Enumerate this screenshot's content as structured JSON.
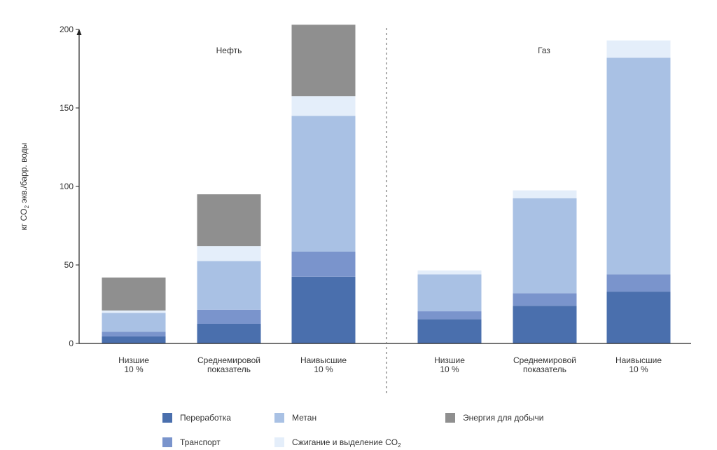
{
  "chart_data": {
    "type": "bar",
    "stacked": true,
    "ylabel_parts": [
      "кг CO",
      "2",
      " экв./барр. воды"
    ],
    "ylim": [
      0,
      200
    ],
    "yticks": [
      0,
      50,
      100,
      150,
      200
    ],
    "groups": [
      {
        "label": "Нефть",
        "categories": [
          [
            "Низшие",
            "10 %"
          ],
          [
            "Среднемировой",
            "показатель"
          ],
          [
            "Наивысшие",
            "10 %"
          ]
        ]
      },
      {
        "label": "Газ",
        "categories": [
          [
            "Низшие",
            "10 %"
          ],
          [
            "Среднемировой",
            "показатель"
          ],
          [
            "Наивысшие",
            "10 %"
          ]
        ]
      }
    ],
    "series": [
      {
        "id": "processing",
        "name": "Переработка",
        "color": "#4a6fad",
        "values": [
          [
            4.5,
            12.5,
            42.5
          ],
          [
            15.5,
            24,
            33
          ]
        ]
      },
      {
        "id": "transport",
        "name": "Транспорт",
        "color": "#7a94cc",
        "values": [
          [
            3,
            9,
            16
          ],
          [
            5,
            8,
            11
          ]
        ]
      },
      {
        "id": "methane",
        "name": "Метан",
        "color": "#a9c1e4",
        "values": [
          [
            12,
            31,
            86.5
          ],
          [
            23.5,
            60.5,
            138
          ]
        ]
      },
      {
        "id": "flaring",
        "name_parts": [
          "Сжигание и выделение CO",
          "2"
        ],
        "color": "#e4eefa",
        "values": [
          [
            1.5,
            9.5,
            12.5
          ],
          [
            2.5,
            5,
            11
          ]
        ]
      },
      {
        "id": "energy",
        "name": "Энергия для добычи",
        "color": "#8f8f8f",
        "values": [
          [
            21,
            33,
            45.5
          ],
          [
            0,
            0,
            0
          ]
        ]
      }
    ],
    "legend": {
      "rows": [
        [
          "processing",
          "methane",
          "energy"
        ],
        [
          "transport",
          "flaring"
        ]
      ]
    }
  }
}
